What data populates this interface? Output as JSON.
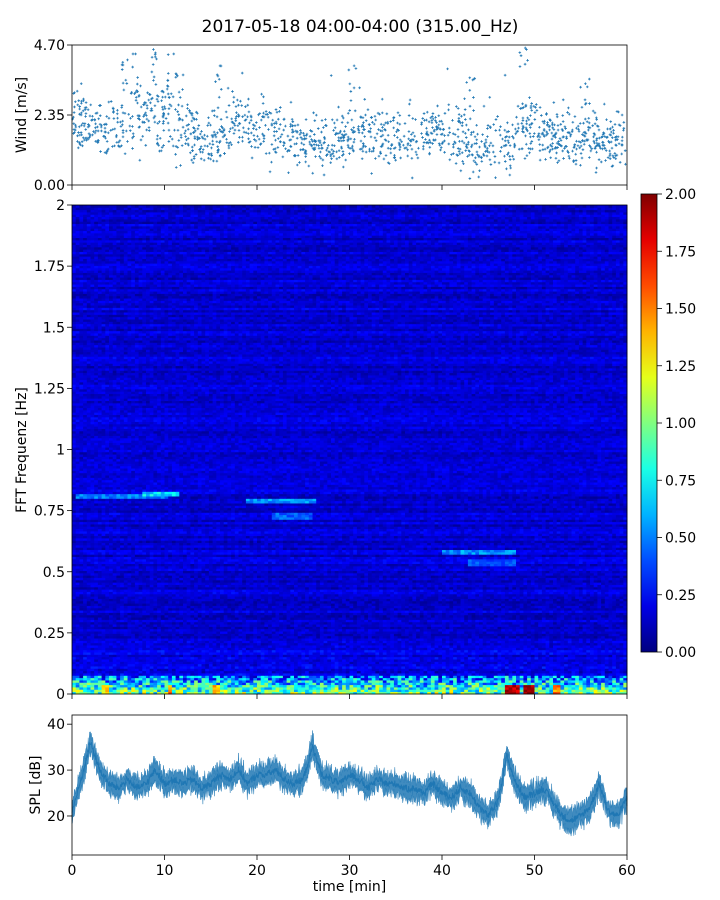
{
  "figure": {
    "title": "2017-05-18 04:00-04:00 (315.00_Hz)"
  },
  "colors": {
    "series": "#1f77b4",
    "spine": "#000000"
  },
  "chart_data": [
    {
      "type": "scatter",
      "name": "wind",
      "ylabel": "Wind [m/s]",
      "xlim": [
        0,
        60
      ],
      "ylim": [
        0.0,
        4.7
      ],
      "yticks": [
        "0.00",
        "2.35",
        "4.70"
      ],
      "ytick_values": [
        0.0,
        2.35,
        4.7
      ],
      "marker": "+",
      "summary_profile": {
        "x": [
          0,
          2,
          4,
          6,
          8,
          10,
          12,
          14,
          16,
          18,
          20,
          22,
          24,
          26,
          28,
          30,
          32,
          34,
          36,
          38,
          40,
          42,
          44,
          46,
          48,
          50,
          52,
          54,
          56,
          58,
          60
        ],
        "median": [
          2.2,
          1.9,
          1.9,
          2.3,
          2.2,
          2.4,
          1.9,
          1.5,
          1.7,
          2.0,
          1.8,
          1.9,
          1.5,
          1.4,
          1.4,
          1.6,
          1.9,
          1.5,
          1.5,
          1.7,
          1.8,
          1.6,
          1.3,
          1.3,
          1.7,
          1.9,
          1.6,
          1.5,
          1.6,
          1.3,
          1.4
        ],
        "spread": [
          0.9,
          0.9,
          0.9,
          1.1,
          1.2,
          1.1,
          1.0,
          0.8,
          0.8,
          0.9,
          0.9,
          0.9,
          0.8,
          0.7,
          0.8,
          1.0,
          0.9,
          0.8,
          0.8,
          0.8,
          0.9,
          0.9,
          0.8,
          0.8,
          0.9,
          0.9,
          0.8,
          0.8,
          0.8,
          0.7,
          0.8
        ]
      },
      "peaks": [
        [
          1.0,
          3.4
        ],
        [
          6.0,
          4.2
        ],
        [
          8.8,
          4.55
        ],
        [
          11.0,
          4.4
        ],
        [
          16.0,
          4.0
        ],
        [
          30.5,
          4.0
        ],
        [
          43.0,
          3.6
        ],
        [
          49.0,
          4.6
        ],
        [
          55.5,
          3.4
        ]
      ]
    },
    {
      "type": "heatmap",
      "name": "spectrogram",
      "ylabel": "FFT Frequenz [Hz]",
      "xlim": [
        0,
        60
      ],
      "ylim": [
        0,
        2
      ],
      "yticks": [
        "0",
        "0.25",
        "0.5",
        "0.75",
        "1",
        "1.25",
        "1.5",
        "1.75",
        "2"
      ],
      "ytick_values": [
        0,
        0.25,
        0.5,
        0.75,
        1,
        1.25,
        1.5,
        1.75,
        2
      ],
      "colormap": "jet",
      "clim": [
        0.0,
        2.0
      ],
      "colorbar_ticks": [
        "0.00",
        "0.25",
        "0.50",
        "0.75",
        "1.00",
        "1.25",
        "1.50",
        "1.75",
        "2.00"
      ],
      "colorbar_tick_values": [
        0,
        0.25,
        0.5,
        0.75,
        1.0,
        1.25,
        1.5,
        1.75,
        2.0
      ],
      "background_level": 0.15,
      "low_freq_band": {
        "freq_max": 0.08,
        "level": 0.9
      },
      "features": [
        {
          "t0": 0.5,
          "t1": 10.5,
          "f": 0.81,
          "level": 0.55
        },
        {
          "t0": 7.5,
          "t1": 11.5,
          "f": 0.82,
          "level": 0.75
        },
        {
          "t0": 19.0,
          "t1": 26.5,
          "f": 0.79,
          "level": 0.6
        },
        {
          "t0": 21.5,
          "t1": 26.0,
          "f": 0.73,
          "level": 0.5
        },
        {
          "t0": 40.0,
          "t1": 48.0,
          "f": 0.58,
          "level": 0.6
        },
        {
          "t0": 43.0,
          "t1": 48.0,
          "f": 0.54,
          "level": 0.45
        }
      ],
      "hot_spots": [
        [
          3.5,
          0.4,
          1.3
        ],
        [
          10.5,
          0.2,
          1.5
        ],
        [
          15.5,
          0.4,
          1.4
        ],
        [
          33.0,
          0.3,
          1.2
        ],
        [
          47.5,
          0.8,
          1.9
        ],
        [
          49.5,
          0.6,
          2.0
        ],
        [
          52.5,
          0.4,
          1.5
        ]
      ]
    },
    {
      "type": "area",
      "name": "spl",
      "ylabel": "SPL [dB]",
      "xlabel": "time [min]",
      "xlim": [
        0,
        60
      ],
      "xticks": [
        "0",
        "10",
        "20",
        "30",
        "40",
        "50",
        "60"
      ],
      "xtick_values": [
        0,
        10,
        20,
        30,
        40,
        50,
        60
      ],
      "ylim": [
        11.5,
        42
      ],
      "yticks": [
        "20",
        "30",
        "40"
      ],
      "ytick_values": [
        20,
        30,
        40
      ],
      "x": [
        0,
        1,
        2,
        3,
        4,
        5,
        6,
        7,
        8,
        9,
        10,
        11,
        12,
        13,
        14,
        15,
        16,
        17,
        18,
        19,
        20,
        21,
        22,
        23,
        24,
        25,
        26,
        27,
        28,
        29,
        30,
        31,
        32,
        33,
        34,
        35,
        36,
        37,
        38,
        39,
        40,
        41,
        42,
        43,
        44,
        45,
        46,
        47,
        48,
        49,
        50,
        51,
        52,
        53,
        54,
        55,
        56,
        57,
        58,
        59,
        60
      ],
      "y": [
        21,
        28,
        36,
        30,
        27,
        26,
        28,
        26,
        27,
        30,
        27,
        28,
        27,
        28,
        26,
        27,
        29,
        28,
        30,
        27,
        29,
        29,
        30,
        28,
        27,
        28,
        35,
        29,
        28,
        27,
        29,
        28,
        26,
        28,
        27,
        27,
        26,
        26,
        25,
        27,
        25,
        24,
        26,
        25,
        22,
        20,
        23,
        33,
        27,
        24,
        25,
        26,
        23,
        20,
        19,
        20,
        22,
        27,
        21,
        20,
        24
      ],
      "band_halfwidth": 2.2
    }
  ]
}
